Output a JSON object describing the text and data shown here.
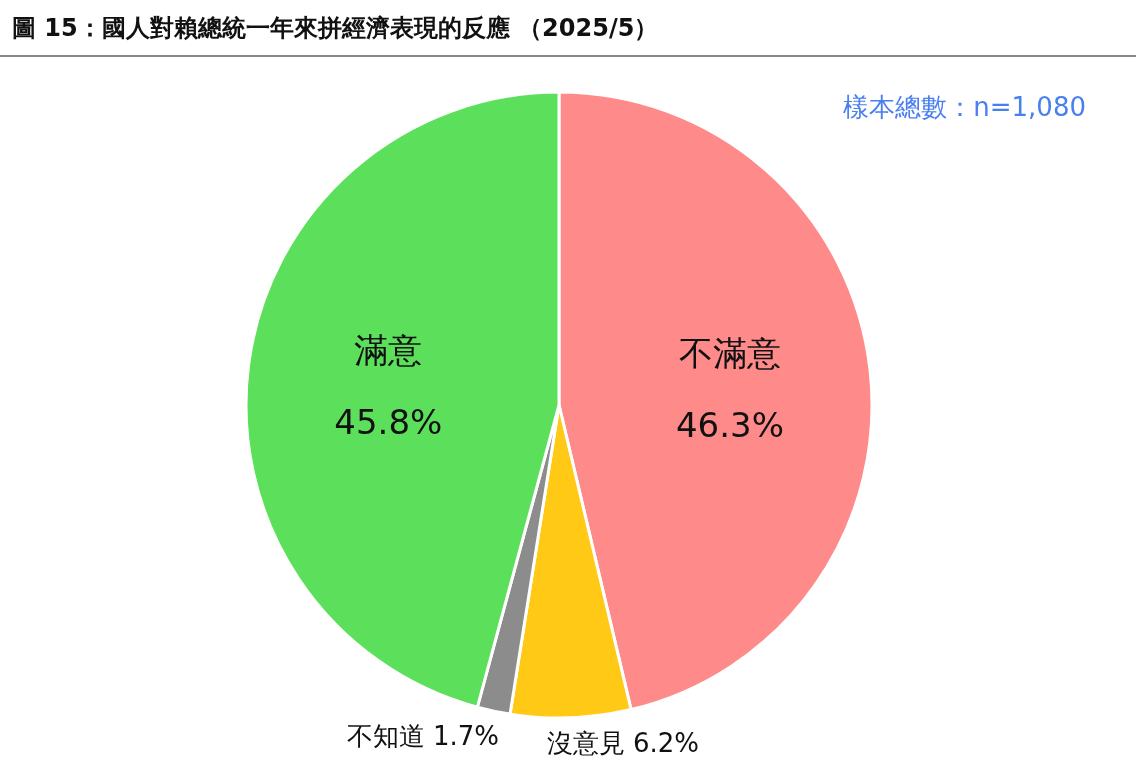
{
  "chart_data": {
    "type": "pie",
    "title": "圖 15：國人對賴總統一年來拼經濟表現的反應 （2025/5）",
    "annotations": [
      "樣本總數：n=1,080"
    ],
    "categories": [
      "不滿意",
      "沒意見",
      "不知道",
      "滿意"
    ],
    "values": [
      46.3,
      6.2,
      1.7,
      45.8
    ],
    "value_labels": [
      "46.3%",
      "6.2%",
      "1.7%",
      "45.8%"
    ],
    "colors": [
      "#ff8a8a",
      "#ffc916",
      "#8c8c8c",
      "#5ce05c"
    ]
  }
}
